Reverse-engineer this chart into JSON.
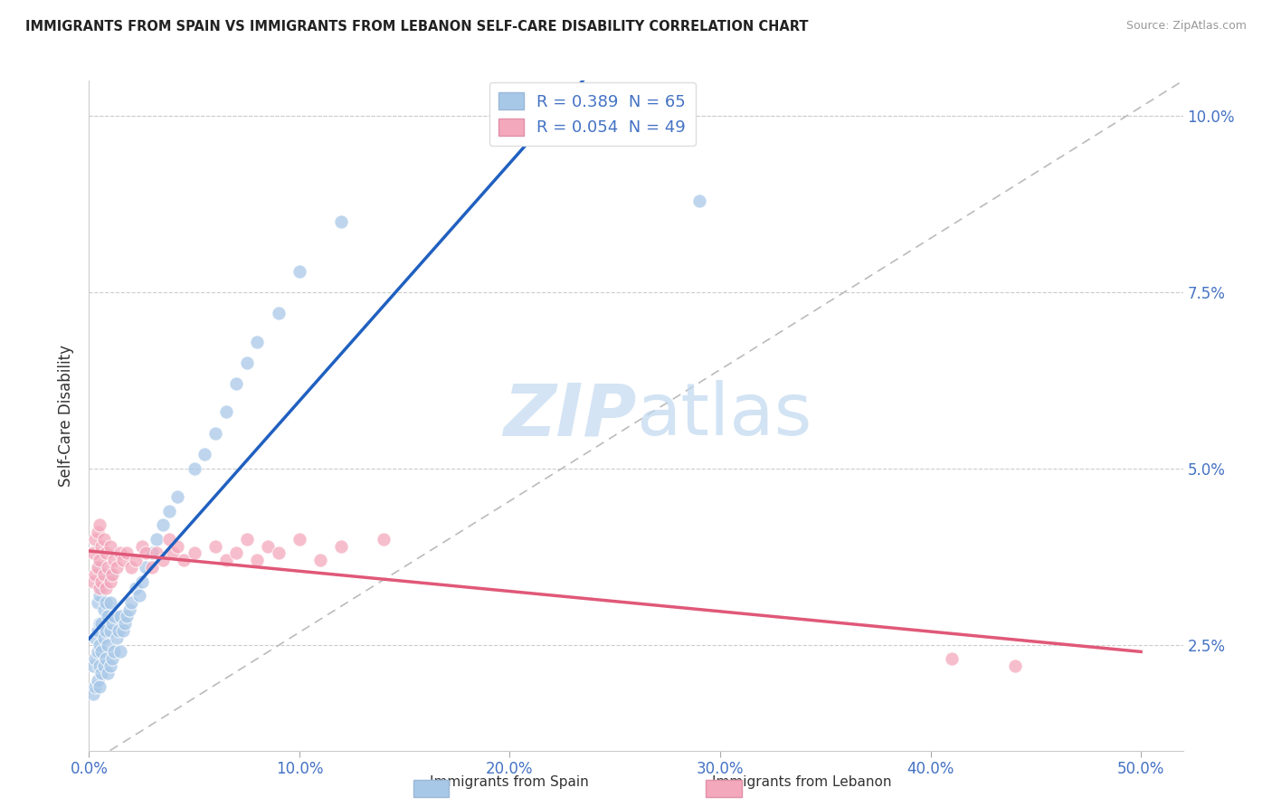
{
  "title": "IMMIGRANTS FROM SPAIN VS IMMIGRANTS FROM LEBANON SELF-CARE DISABILITY CORRELATION CHART",
  "source": "Source: ZipAtlas.com",
  "ylabel": "Self-Care Disability",
  "xlabel_ticks": [
    "0.0%",
    "10.0%",
    "20.0%",
    "30.0%",
    "40.0%",
    "50.0%"
  ],
  "ylabel_ticks": [
    "2.5%",
    "5.0%",
    "7.5%",
    "10.0%"
  ],
  "xlim": [
    0.0,
    0.52
  ],
  "ylim": [
    0.01,
    0.105
  ],
  "legend1_label": "R = 0.389  N = 65",
  "legend2_label": "R = 0.054  N = 49",
  "legend_xlabel1": "Immigrants from Spain",
  "legend_xlabel2": "Immigrants from Lebanon",
  "spain_color": "#a8c8e8",
  "lebanon_color": "#f4a8bc",
  "spain_line_color": "#2060c0",
  "lebanon_line_color": "#e05878",
  "diagonal_color": "#bbbbbb",
  "watermark_color": "#d4e4f4",
  "spain_x": [
    0.002,
    0.002,
    0.003,
    0.003,
    0.003,
    0.004,
    0.004,
    0.004,
    0.004,
    0.005,
    0.005,
    0.005,
    0.005,
    0.005,
    0.005,
    0.006,
    0.006,
    0.006,
    0.006,
    0.007,
    0.007,
    0.007,
    0.008,
    0.008,
    0.008,
    0.009,
    0.009,
    0.009,
    0.01,
    0.01,
    0.01,
    0.01,
    0.011,
    0.011,
    0.012,
    0.012,
    0.013,
    0.014,
    0.015,
    0.015,
    0.016,
    0.017,
    0.018,
    0.019,
    0.02,
    0.022,
    0.024,
    0.025,
    0.027,
    0.03,
    0.032,
    0.035,
    0.038,
    0.042,
    0.05,
    0.055,
    0.06,
    0.065,
    0.07,
    0.075,
    0.08,
    0.09,
    0.1,
    0.12,
    0.29
  ],
  "spain_y": [
    0.018,
    0.022,
    0.019,
    0.023,
    0.026,
    0.02,
    0.024,
    0.027,
    0.031,
    0.019,
    0.022,
    0.025,
    0.028,
    0.032,
    0.036,
    0.021,
    0.024,
    0.028,
    0.033,
    0.022,
    0.026,
    0.03,
    0.023,
    0.027,
    0.031,
    0.021,
    0.025,
    0.029,
    0.022,
    0.027,
    0.031,
    0.035,
    0.023,
    0.028,
    0.024,
    0.029,
    0.026,
    0.027,
    0.024,
    0.029,
    0.027,
    0.028,
    0.029,
    0.03,
    0.031,
    0.033,
    0.032,
    0.034,
    0.036,
    0.038,
    0.04,
    0.042,
    0.044,
    0.046,
    0.05,
    0.052,
    0.055,
    0.058,
    0.062,
    0.065,
    0.068,
    0.072,
    0.078,
    0.085,
    0.088
  ],
  "lebanon_x": [
    0.002,
    0.002,
    0.003,
    0.003,
    0.004,
    0.004,
    0.005,
    0.005,
    0.005,
    0.006,
    0.006,
    0.007,
    0.007,
    0.008,
    0.008,
    0.009,
    0.01,
    0.01,
    0.011,
    0.012,
    0.013,
    0.015,
    0.016,
    0.018,
    0.02,
    0.022,
    0.025,
    0.027,
    0.03,
    0.032,
    0.035,
    0.038,
    0.04,
    0.042,
    0.045,
    0.05,
    0.06,
    0.065,
    0.07,
    0.075,
    0.08,
    0.085,
    0.09,
    0.1,
    0.11,
    0.12,
    0.14,
    0.41,
    0.44
  ],
  "lebanon_y": [
    0.034,
    0.038,
    0.035,
    0.04,
    0.036,
    0.041,
    0.033,
    0.037,
    0.042,
    0.034,
    0.039,
    0.035,
    0.04,
    0.033,
    0.038,
    0.036,
    0.034,
    0.039,
    0.035,
    0.037,
    0.036,
    0.038,
    0.037,
    0.038,
    0.036,
    0.037,
    0.039,
    0.038,
    0.036,
    0.038,
    0.037,
    0.04,
    0.038,
    0.039,
    0.037,
    0.038,
    0.039,
    0.037,
    0.038,
    0.04,
    0.037,
    0.039,
    0.038,
    0.04,
    0.037,
    0.039,
    0.04,
    0.023,
    0.022
  ],
  "background_color": "#ffffff",
  "grid_color": "#cccccc",
  "title_color": "#222222",
  "tick_label_color": "#4472c4"
}
